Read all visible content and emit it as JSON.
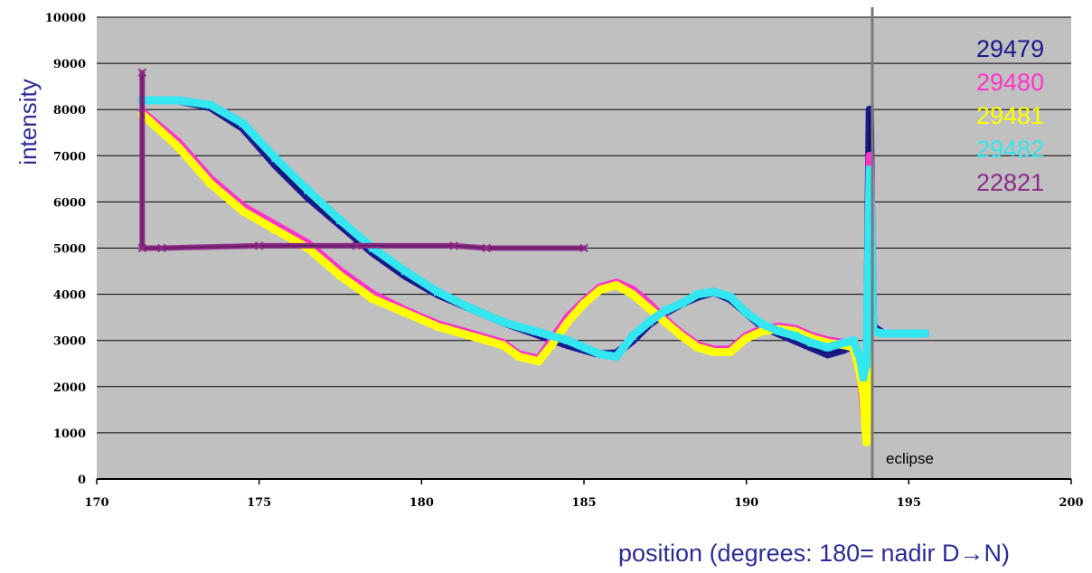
{
  "chart_data": {
    "type": "line",
    "title": "",
    "xlabel": "position (degrees: 180= nadir D→N)",
    "ylabel": "intensity",
    "xlim": [
      170,
      200
    ],
    "ylim": [
      0,
      10000
    ],
    "x_ticks": [
      170,
      175,
      180,
      185,
      190,
      195,
      200
    ],
    "x_tick_labels": [
      "170",
      "175",
      "180",
      "185",
      "190",
      "195",
      "200"
    ],
    "y_ticks": [
      0,
      1000,
      2000,
      3000,
      4000,
      5000,
      6000,
      7000,
      8000,
      9000,
      10000
    ],
    "y_tick_labels": [
      "0",
      "1000",
      "2000",
      "3000",
      "4000",
      "5000",
      "6000",
      "7000",
      "8000",
      "9000",
      "10000"
    ],
    "grid": "horizontal",
    "background": "#c0c0c0",
    "legend_position": "top-right",
    "annotations": [
      {
        "text": "eclipse",
        "x": 194
      }
    ],
    "series": [
      {
        "name": "29479",
        "color": "#1a1a8c",
        "marker": "diamond",
        "points": [
          [
            171.4,
            8200
          ],
          [
            172.5,
            8200
          ],
          [
            173.5,
            8050
          ],
          [
            174.5,
            7600
          ],
          [
            175.5,
            6800
          ],
          [
            176.5,
            6100
          ],
          [
            177.5,
            5500
          ],
          [
            178.5,
            4900
          ],
          [
            179.5,
            4400
          ],
          [
            180.5,
            4000
          ],
          [
            181.5,
            3700
          ],
          [
            182.5,
            3400
          ],
          [
            183.5,
            3150
          ],
          [
            184.5,
            2900
          ],
          [
            185.5,
            2700
          ],
          [
            186,
            2720
          ],
          [
            186.5,
            3000
          ],
          [
            187,
            3350
          ],
          [
            187.5,
            3600
          ],
          [
            188,
            3800
          ],
          [
            188.5,
            3950
          ],
          [
            189,
            4050
          ],
          [
            189.5,
            3900
          ],
          [
            190,
            3600
          ],
          [
            190.5,
            3300
          ],
          [
            191,
            3150
          ],
          [
            191.5,
            3000
          ],
          [
            192,
            2850
          ],
          [
            192.5,
            2700
          ],
          [
            193,
            2800
          ],
          [
            193.3,
            2900
          ],
          [
            193.5,
            2500
          ],
          [
            193.6,
            2000
          ],
          [
            193.7,
            1500
          ],
          [
            193.8,
            8000
          ],
          [
            193.85,
            5000
          ],
          [
            193.9,
            3300
          ],
          [
            194.2,
            3150
          ],
          [
            195.5,
            3150
          ]
        ]
      },
      {
        "name": "29480",
        "color": "#ff33cc",
        "marker": "square",
        "points": [
          [
            171.4,
            7950
          ],
          [
            172.5,
            7300
          ],
          [
            173.5,
            6500
          ],
          [
            174.5,
            5900
          ],
          [
            175.5,
            5500
          ],
          [
            176.5,
            5100
          ],
          [
            177.5,
            4500
          ],
          [
            178.5,
            4000
          ],
          [
            179.5,
            3650
          ],
          [
            180.5,
            3350
          ],
          [
            181.5,
            3150
          ],
          [
            182.5,
            2950
          ],
          [
            183,
            2700
          ],
          [
            183.6,
            2600
          ],
          [
            184,
            3000
          ],
          [
            184.5,
            3500
          ],
          [
            185,
            3850
          ],
          [
            185.5,
            4150
          ],
          [
            186,
            4250
          ],
          [
            186.5,
            4100
          ],
          [
            187,
            3800
          ],
          [
            187.5,
            3450
          ],
          [
            188,
            3150
          ],
          [
            188.5,
            2900
          ],
          [
            189,
            2800
          ],
          [
            189.5,
            2800
          ],
          [
            190,
            3100
          ],
          [
            190.5,
            3250
          ],
          [
            191,
            3300
          ],
          [
            191.5,
            3250
          ],
          [
            192,
            3100
          ],
          [
            192.5,
            3000
          ],
          [
            193,
            2950
          ],
          [
            193.3,
            2900
          ],
          [
            193.5,
            2400
          ],
          [
            193.6,
            1600
          ],
          [
            193.7,
            1000
          ],
          [
            193.8,
            7000
          ],
          [
            193.85,
            5600
          ],
          [
            193.9,
            3300
          ]
        ]
      },
      {
        "name": "29481",
        "color": "#ffff00",
        "marker": "triangle",
        "points": [
          [
            171.4,
            7900
          ],
          [
            172.5,
            7200
          ],
          [
            173.5,
            6400
          ],
          [
            174.5,
            5800
          ],
          [
            175.5,
            5400
          ],
          [
            176.5,
            5000
          ],
          [
            177.5,
            4400
          ],
          [
            178.5,
            3900
          ],
          [
            179.5,
            3600
          ],
          [
            180.5,
            3300
          ],
          [
            181.5,
            3100
          ],
          [
            182.5,
            2900
          ],
          [
            183,
            2650
          ],
          [
            183.6,
            2550
          ],
          [
            184,
            2900
          ],
          [
            184.5,
            3400
          ],
          [
            185,
            3800
          ],
          [
            185.5,
            4100
          ],
          [
            186,
            4200
          ],
          [
            186.5,
            4000
          ],
          [
            187,
            3700
          ],
          [
            187.5,
            3400
          ],
          [
            188,
            3100
          ],
          [
            188.5,
            2850
          ],
          [
            189,
            2750
          ],
          [
            189.5,
            2750
          ],
          [
            190,
            3050
          ],
          [
            190.5,
            3200
          ],
          [
            191,
            3250
          ],
          [
            191.5,
            3200
          ],
          [
            192,
            3050
          ],
          [
            192.5,
            2950
          ],
          [
            193,
            2900
          ],
          [
            193.3,
            2850
          ],
          [
            193.5,
            2300
          ],
          [
            193.6,
            1800
          ],
          [
            193.7,
            800
          ],
          [
            193.8,
            6000
          ],
          [
            193.85,
            4500
          ],
          [
            193.9,
            3200
          ]
        ]
      },
      {
        "name": "29482",
        "color": "#33e6f0",
        "marker": "x",
        "points": [
          [
            171.4,
            8200
          ],
          [
            172.5,
            8200
          ],
          [
            173.5,
            8100
          ],
          [
            174.5,
            7700
          ],
          [
            175.5,
            6950
          ],
          [
            176.5,
            6250
          ],
          [
            177.5,
            5600
          ],
          [
            178.5,
            5000
          ],
          [
            179.5,
            4500
          ],
          [
            180.5,
            4050
          ],
          [
            181.5,
            3700
          ],
          [
            182.5,
            3400
          ],
          [
            183.5,
            3200
          ],
          [
            184.5,
            3000
          ],
          [
            185.5,
            2700
          ],
          [
            186,
            2650
          ],
          [
            186.5,
            3100
          ],
          [
            187,
            3400
          ],
          [
            187.5,
            3650
          ],
          [
            188,
            3800
          ],
          [
            188.5,
            4000
          ],
          [
            189,
            4050
          ],
          [
            189.5,
            3950
          ],
          [
            190,
            3600
          ],
          [
            190.5,
            3350
          ],
          [
            191,
            3200
          ],
          [
            191.5,
            3100
          ],
          [
            192,
            2950
          ],
          [
            192.5,
            2850
          ],
          [
            193,
            2950
          ],
          [
            193.3,
            3000
          ],
          [
            193.5,
            2600
          ],
          [
            193.6,
            2200
          ],
          [
            193.7,
            2500
          ],
          [
            193.8,
            6700
          ],
          [
            193.85,
            5200
          ],
          [
            193.9,
            3200
          ],
          [
            194.2,
            3150
          ],
          [
            195.5,
            3150
          ]
        ]
      },
      {
        "name": "22821",
        "color": "#8e2a8a",
        "marker": "x",
        "points": [
          [
            171.4,
            8800
          ],
          [
            171.4,
            5000
          ],
          [
            172,
            5000
          ],
          [
            175,
            5050
          ],
          [
            178,
            5050
          ],
          [
            181,
            5050
          ],
          [
            182,
            5000
          ],
          [
            185,
            5000
          ]
        ]
      }
    ]
  }
}
